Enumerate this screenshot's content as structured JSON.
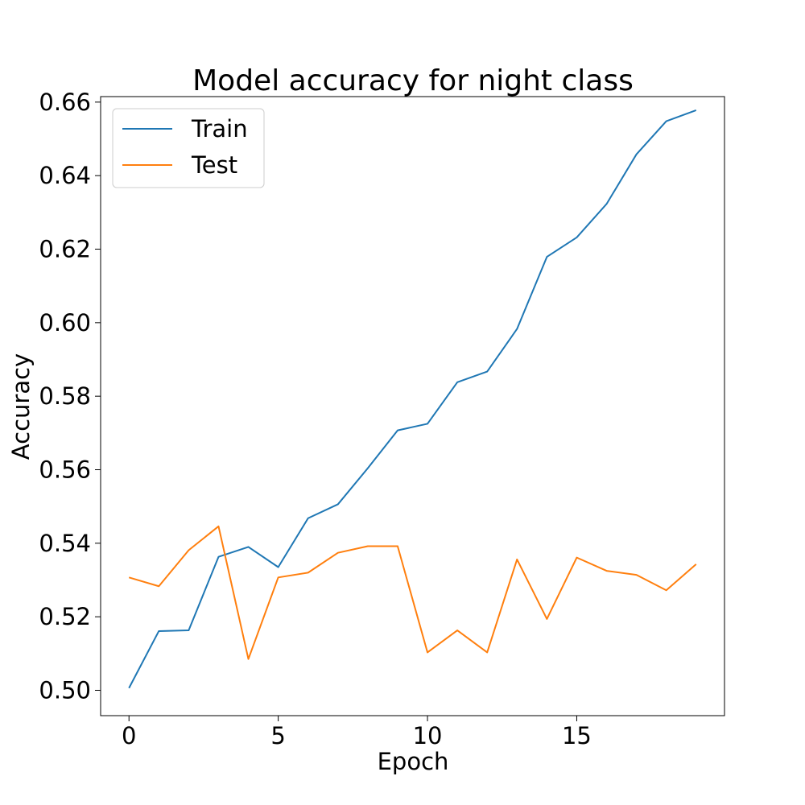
{
  "chart_data": {
    "type": "line",
    "title": "Model accuracy for night class",
    "xlabel": "Epoch",
    "ylabel": "Accuracy",
    "x": [
      0,
      1,
      2,
      3,
      4,
      5,
      6,
      7,
      8,
      9,
      10,
      11,
      12,
      13,
      14,
      15,
      16,
      17,
      18,
      19
    ],
    "xlim": [
      -0.95,
      19.95
    ],
    "ylim": [
      0.4931,
      0.6615
    ],
    "xticks": [
      0,
      5,
      10,
      15
    ],
    "xtick_labels": [
      "0",
      "5",
      "10",
      "15"
    ],
    "yticks": [
      0.5,
      0.52,
      0.54,
      0.56,
      0.58,
      0.6,
      0.62,
      0.64,
      0.66
    ],
    "ytick_labels": [
      "0.50",
      "0.52",
      "0.54",
      "0.56",
      "0.58",
      "0.60",
      "0.62",
      "0.64",
      "0.66"
    ],
    "grid": false,
    "legend_position": "top-left",
    "series": [
      {
        "name": "Train",
        "color": "#1f77b4",
        "values": [
          0.5006,
          0.5161,
          0.5163,
          0.5363,
          0.539,
          0.5335,
          0.5468,
          0.5506,
          0.5604,
          0.5707,
          0.5725,
          0.5838,
          0.5867,
          0.5983,
          0.6179,
          0.6232,
          0.6323,
          0.6458,
          0.6548,
          0.6578
        ]
      },
      {
        "name": "Test",
        "color": "#ff7f0e",
        "values": [
          0.5307,
          0.5283,
          0.5381,
          0.5446,
          0.5085,
          0.5307,
          0.532,
          0.5374,
          0.5392,
          0.5392,
          0.5103,
          0.5163,
          0.5103,
          0.5356,
          0.5194,
          0.5361,
          0.5325,
          0.5314,
          0.5272,
          0.5343
        ]
      }
    ]
  }
}
